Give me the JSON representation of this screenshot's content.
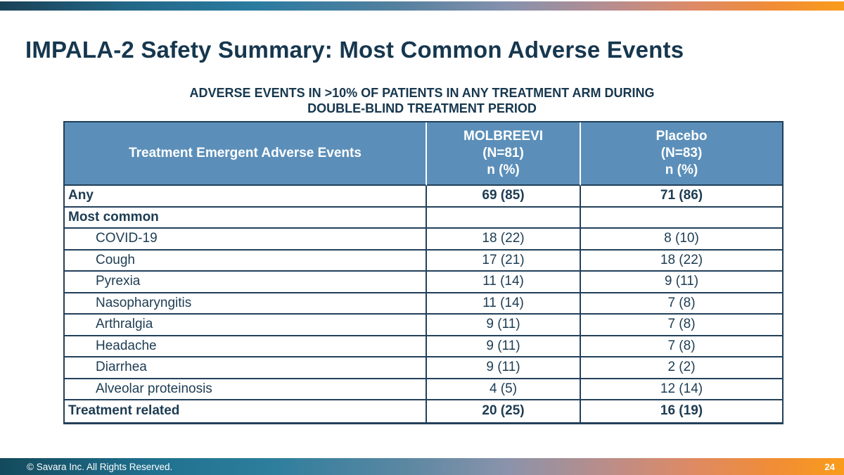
{
  "title": "IMPALA-2 Safety Summary: Most Common Adverse Events",
  "caption": {
    "line1": "ADVERSE EVENTS IN >10% OF PATIENTS IN ANY TREATMENT ARM DURING",
    "line2": "DOUBLE-BLIND TREATMENT PERIOD"
  },
  "table": {
    "columns": [
      {
        "label": "Treatment Emergent Adverse Events"
      },
      {
        "name": "MOLBREEVI",
        "n": "(N=81)",
        "unit": "n (%)"
      },
      {
        "name": "Placebo",
        "n": "(N=83)",
        "unit": "n (%)"
      }
    ],
    "rows": [
      {
        "label": "Any",
        "bold": true,
        "indent": 0,
        "molbreevi": "69 (85)",
        "placebo": "71 (86)"
      },
      {
        "label": "Most common",
        "bold": true,
        "indent": 0,
        "molbreevi": "",
        "placebo": ""
      },
      {
        "label": "COVID-19",
        "bold": false,
        "indent": 1,
        "molbreevi": "18 (22)",
        "placebo": "8 (10)"
      },
      {
        "label": "Cough",
        "bold": false,
        "indent": 1,
        "molbreevi": "17 (21)",
        "placebo": "18 (22)"
      },
      {
        "label": "Pyrexia",
        "bold": false,
        "indent": 1,
        "molbreevi": "11 (14)",
        "placebo": "9 (11)"
      },
      {
        "label": "Nasopharyngitis",
        "bold": false,
        "indent": 1,
        "molbreevi": "11 (14)",
        "placebo": "7 (8)"
      },
      {
        "label": "Arthralgia",
        "bold": false,
        "indent": 1,
        "molbreevi": "9 (11)",
        "placebo": "7 (8)"
      },
      {
        "label": "Headache",
        "bold": false,
        "indent": 1,
        "molbreevi": "9 (11)",
        "placebo": "7 (8)"
      },
      {
        "label": "Diarrhea",
        "bold": false,
        "indent": 1,
        "molbreevi": "9 (11)",
        "placebo": "2 (2)"
      },
      {
        "label": "Alveolar proteinosis",
        "bold": false,
        "indent": 1,
        "molbreevi": "4 (5)",
        "placebo": "12 (14)"
      },
      {
        "label": "Treatment related",
        "bold": true,
        "indent": 0,
        "molbreevi": "20 (25)",
        "placebo": "16 (19)"
      }
    ]
  },
  "footer": {
    "copyright": "© Savara Inc. All Rights Reserved.",
    "page_number": "24"
  },
  "colors": {
    "navy_text": "#16374e",
    "table_text": "#1d3c52",
    "table_header_fill": "#5b8fb9",
    "table_border": "#22405a",
    "bar_orange": "#f99c1b"
  }
}
